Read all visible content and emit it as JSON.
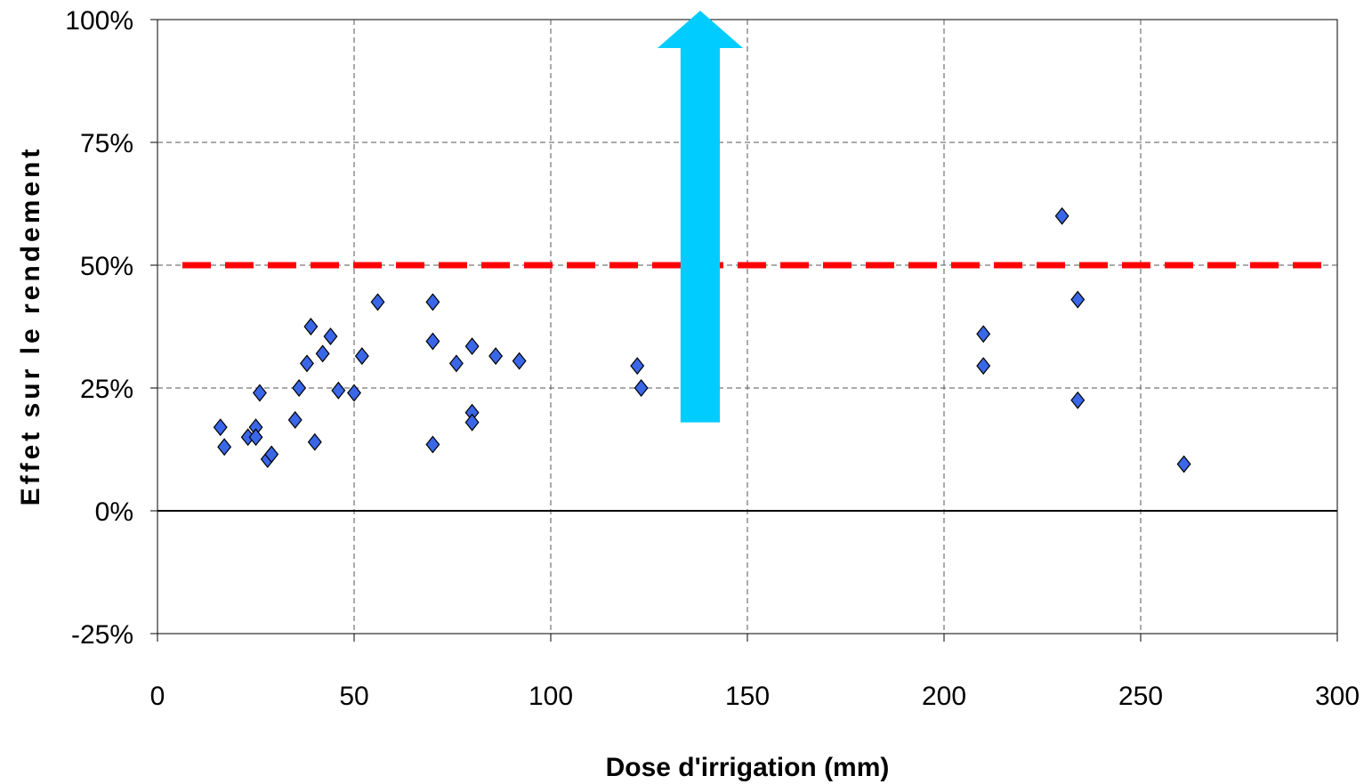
{
  "chart_data": {
    "type": "scatter",
    "title": "",
    "xlabel": "Dose d'irrigation (mm)",
    "ylabel": "Effet sur le rendement",
    "xlim": [
      0,
      300
    ],
    "ylim": [
      -25,
      100
    ],
    "x_ticks": [
      "0",
      "50",
      "100",
      "150",
      "200",
      "250",
      "300"
    ],
    "x_tick_values": [
      0,
      50,
      100,
      150,
      200,
      250,
      300
    ],
    "y_ticks": [
      "-25%",
      "0%",
      "25%",
      "50%",
      "75%",
      "100%"
    ],
    "y_tick_values": [
      -25,
      0,
      25,
      50,
      75,
      100
    ],
    "grid": true,
    "legend": "none",
    "series": [
      {
        "marker": "diamond",
        "color": "#3a66e8",
        "points": [
          [
            16,
            17
          ],
          [
            17,
            13
          ],
          [
            23,
            15
          ],
          [
            25,
            17
          ],
          [
            25,
            15
          ],
          [
            26,
            24
          ],
          [
            28,
            10.5
          ],
          [
            29,
            11.5
          ],
          [
            35,
            18.5
          ],
          [
            36,
            25
          ],
          [
            38,
            30
          ],
          [
            39,
            37.5
          ],
          [
            40,
            14
          ],
          [
            42,
            32
          ],
          [
            44,
            35.5
          ],
          [
            46,
            24.5
          ],
          [
            50,
            24
          ],
          [
            52,
            31.5
          ],
          [
            56,
            42.5
          ],
          [
            70,
            42.5
          ],
          [
            70,
            34.5
          ],
          [
            70,
            13.5
          ],
          [
            76,
            30
          ],
          [
            80,
            33.5
          ],
          [
            80,
            20
          ],
          [
            80,
            18
          ],
          [
            86,
            31.5
          ],
          [
            92,
            30.5
          ],
          [
            122,
            29.5
          ],
          [
            123,
            25
          ],
          [
            210,
            36
          ],
          [
            210,
            29.5
          ],
          [
            230,
            60
          ],
          [
            234,
            43
          ],
          [
            234,
            22.5
          ],
          [
            261,
            9.5
          ]
        ]
      }
    ],
    "reference_line": {
      "y": 50,
      "style": "dashed",
      "color": "#ff0000"
    },
    "zero_line": {
      "y": 0,
      "color": "#000000"
    },
    "arrow": {
      "x_from": 133,
      "x_to": 143,
      "y_from": 18,
      "y_to": 100,
      "direction": "up",
      "color": "#00ccff"
    }
  }
}
